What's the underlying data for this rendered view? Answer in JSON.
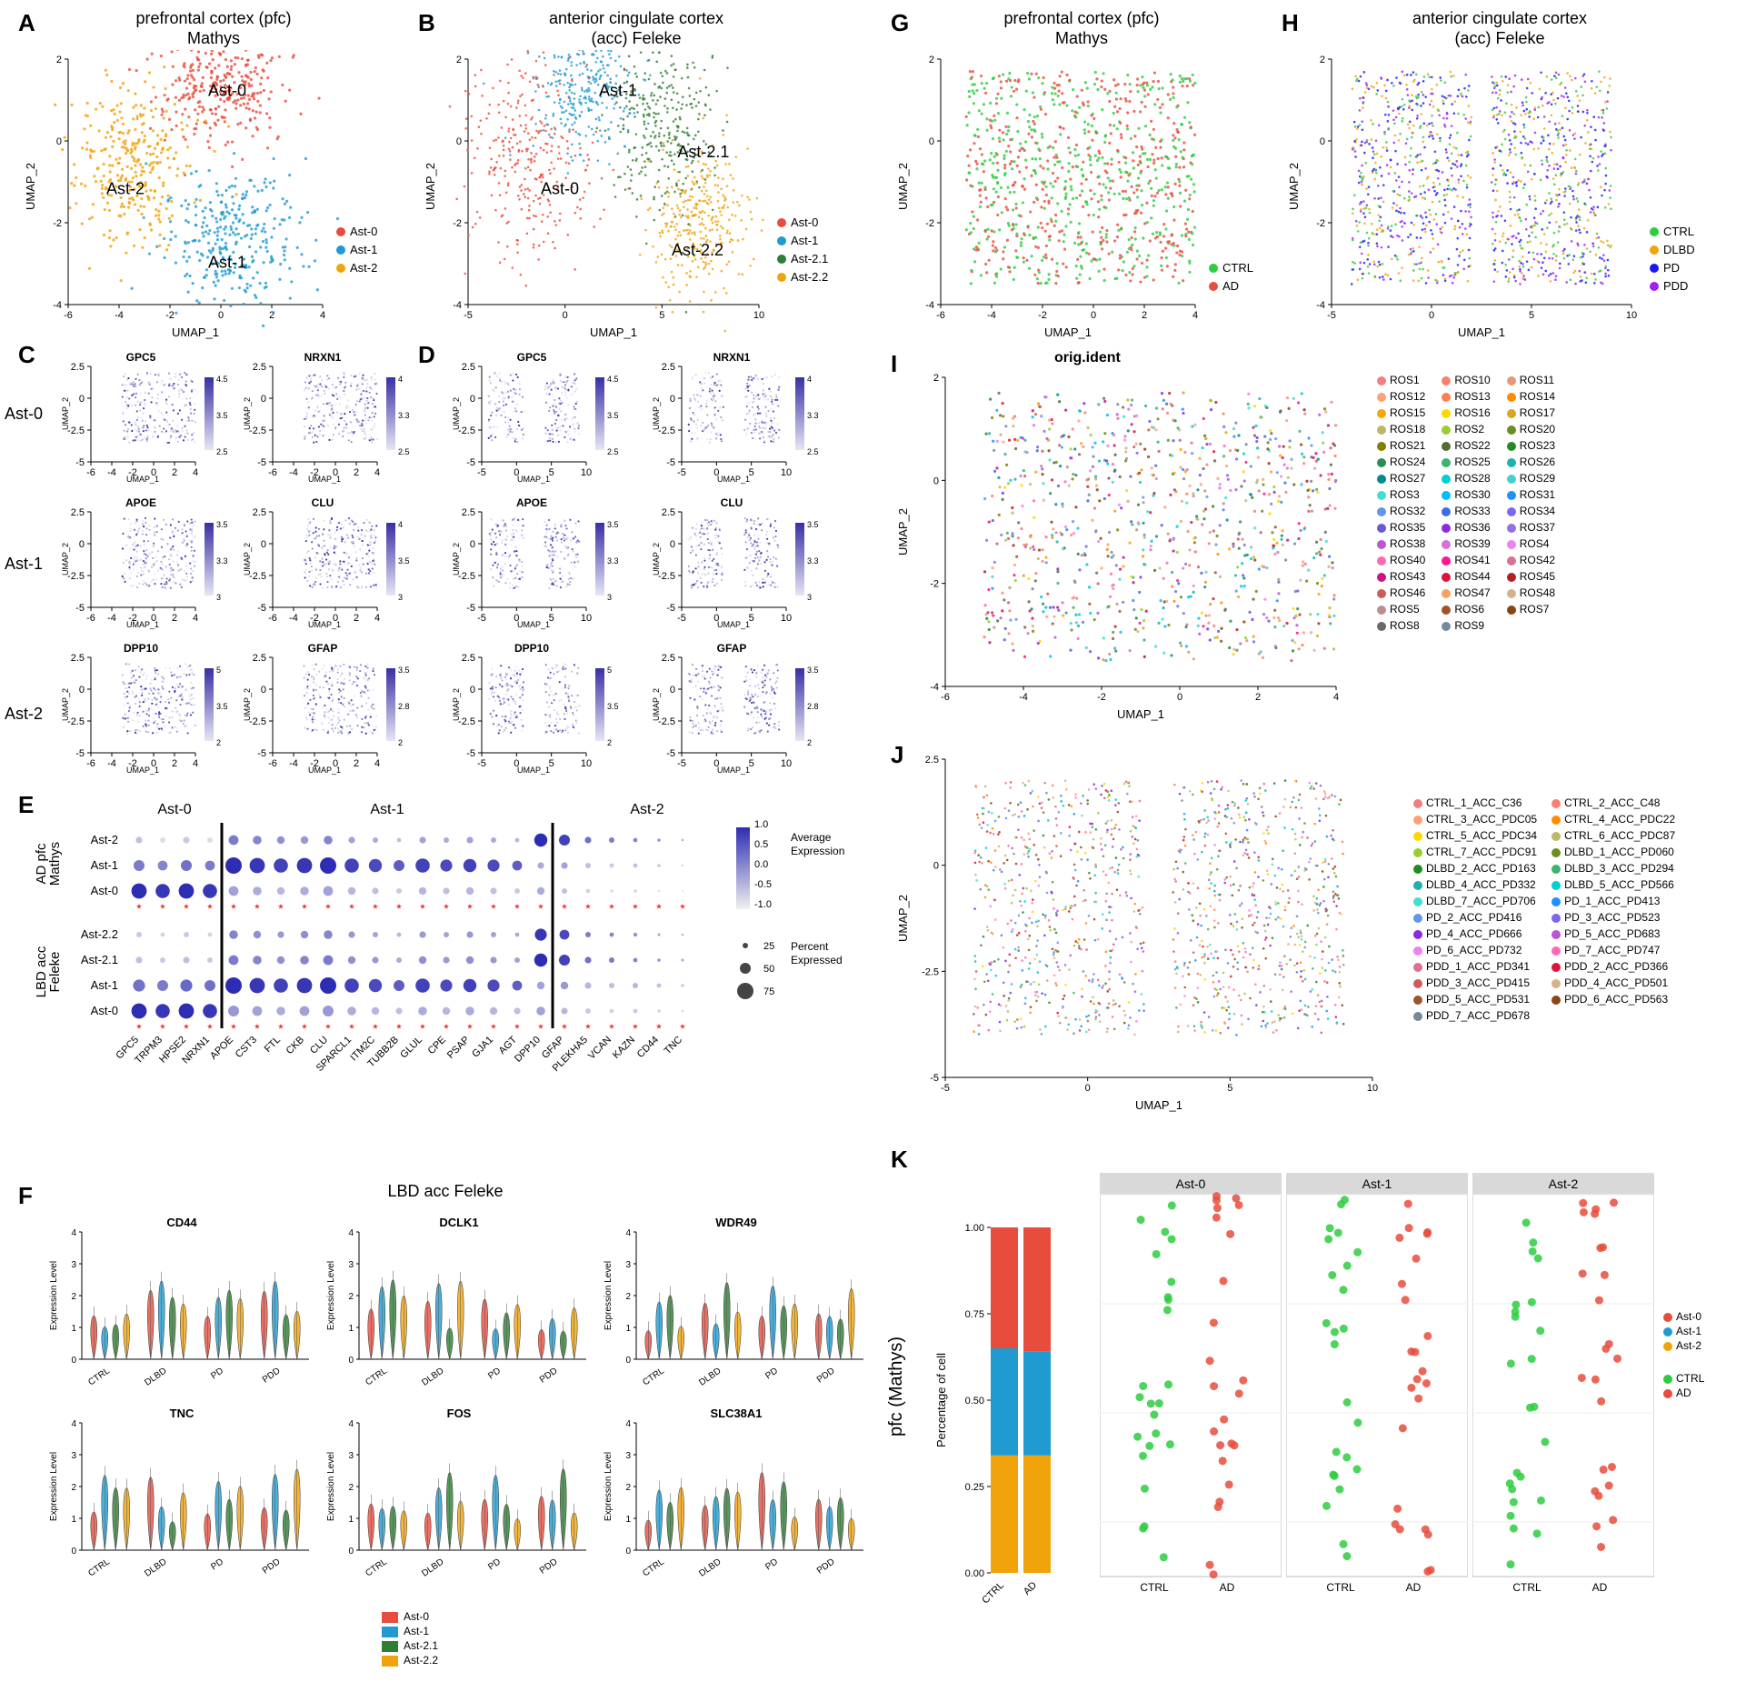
{
  "panelA": {
    "label": "A",
    "title_l1": "prefrontal cortex (pfc)",
    "title_l2": "Mathys",
    "xaxis": "UMAP_1",
    "yaxis": "UMAP_2",
    "xlim": [
      -6,
      4
    ],
    "ylim": [
      -4,
      2
    ],
    "xticks": [
      -6,
      -4,
      -2,
      0,
      2,
      4
    ],
    "yticks": [
      -4,
      -2,
      0,
      2
    ],
    "clusters": [
      {
        "name": "Ast-0",
        "color": "#e74c3c",
        "anno_x": 0.55,
        "anno_y": 0.15
      },
      {
        "name": "Ast-1",
        "color": "#1f9bd1",
        "anno_x": 0.55,
        "anno_y": 0.85
      },
      {
        "name": "Ast-2",
        "color": "#f0a30a",
        "anno_x": 0.15,
        "anno_y": 0.55
      }
    ],
    "n_points": 900
  },
  "panelB": {
    "label": "B",
    "title_l1": "anterior cingulate cortex",
    "title_l2": "(acc) Feleke",
    "xaxis": "UMAP_1",
    "yaxis": "UMAP_2",
    "xlim": [
      -5,
      10
    ],
    "ylim": [
      -4,
      2
    ],
    "xticks": [
      -5,
      0,
      5,
      10
    ],
    "yticks": [
      -4,
      -2,
      0,
      2
    ],
    "clusters": [
      {
        "name": "Ast-0",
        "color": "#e74c3c",
        "anno_x": 0.25,
        "anno_y": 0.55
      },
      {
        "name": "Ast-1",
        "color": "#1f9bd1",
        "anno_x": 0.45,
        "anno_y": 0.15
      },
      {
        "name": "Ast-2.1",
        "color": "#2e7d32",
        "anno_x": 0.72,
        "anno_y": 0.4
      },
      {
        "name": "Ast-2.2",
        "color": "#f0a30a",
        "anno_x": 0.7,
        "anno_y": 0.8
      }
    ],
    "n_points": 1200
  },
  "panelCD": {
    "labelC": "C",
    "labelD": "D",
    "row_headers": [
      "Ast-0",
      "Ast-1",
      "Ast-2"
    ],
    "genes": [
      [
        "GPC5",
        "NRXN1"
      ],
      [
        "APOE",
        "CLU"
      ],
      [
        "DPP10",
        "GFAP"
      ]
    ],
    "scaleC": [
      [
        2.5,
        4.5
      ],
      [
        2.5,
        4.0
      ],
      [
        3.0,
        3.5
      ],
      [
        3.0,
        4.0
      ],
      [
        2,
        5
      ],
      [
        2.0,
        3.5
      ]
    ],
    "scaleD": [
      [
        2.5,
        4.5
      ],
      [
        2.5,
        4.0
      ],
      [
        3.0,
        3.5
      ],
      [
        3.0,
        3.5
      ],
      [
        2,
        5
      ],
      [
        2.0,
        3.5
      ]
    ],
    "color_low": "#e6e6f5",
    "color_high": "#3730a3",
    "axesC": {
      "xlim": [
        -6,
        4
      ],
      "ylim": [
        -5,
        2.5
      ],
      "xticks": [
        -6,
        -4,
        -2,
        0,
        2,
        4
      ],
      "yticks": [
        -5.0,
        -2.5,
        0.0,
        2.5
      ]
    },
    "axesD": {
      "xlim": [
        -5,
        10
      ],
      "ylim": [
        -5,
        2.5
      ],
      "xticks": [
        -5,
        0,
        5,
        10
      ],
      "yticks": [
        -5.0,
        -2.5,
        0.0,
        2.5
      ]
    }
  },
  "panelE": {
    "label": "E",
    "group_headers": [
      "Ast-0",
      "Ast-1",
      "Ast-2"
    ],
    "group_bounds": [
      0,
      4,
      18,
      26
    ],
    "rows_top": [
      "Ast-2",
      "Ast-1",
      "Ast-0"
    ],
    "rows_bot": [
      "Ast-2.2",
      "Ast-2.1",
      "Ast-1",
      "Ast-0"
    ],
    "top_label_l1": "AD pfc",
    "top_label_l2": "Mathys",
    "bot_label_l1": "LBD acc",
    "bot_label_l2": "Feleke",
    "genes": [
      "GPC5",
      "TRPM3",
      "HPSE2",
      "NRXN1",
      "APOE",
      "CST3",
      "FTL",
      "CKB",
      "CLU",
      "SPARCL1",
      "ITM2C",
      "TUBB2B",
      "GLUL",
      "CPE",
      "PSAP",
      "GJA1",
      "AGT",
      "DPP10",
      "GFAP",
      "PLEKHA5",
      "VCAN",
      "KAZN",
      "CD44",
      "TNC"
    ],
    "stars_top": [
      1,
      1,
      1,
      1,
      1,
      1,
      1,
      1,
      1,
      1,
      1,
      1,
      1,
      1,
      1,
      1,
      1,
      1,
      1,
      1,
      1,
      1,
      1,
      1
    ],
    "stars_bot": [
      1,
      1,
      1,
      1,
      1,
      1,
      1,
      1,
      1,
      1,
      1,
      1,
      1,
      1,
      1,
      1,
      1,
      1,
      1,
      1,
      1,
      1,
      1,
      1
    ],
    "top_data": [
      [
        [
          -0.5,
          30
        ],
        [
          -0.8,
          25
        ],
        [
          -0.6,
          30
        ],
        [
          -0.8,
          25
        ],
        [
          0.2,
          45
        ],
        [
          0.1,
          40
        ],
        [
          0.0,
          35
        ],
        [
          -0.1,
          35
        ],
        [
          0.1,
          40
        ],
        [
          -0.2,
          30
        ],
        [
          -0.3,
          25
        ],
        [
          -0.5,
          20
        ],
        [
          -0.2,
          30
        ],
        [
          -0.3,
          25
        ],
        [
          -0.2,
          30
        ],
        [
          -0.3,
          25
        ],
        [
          -0.4,
          20
        ],
        [
          1.0,
          60
        ],
        [
          0.8,
          50
        ],
        [
          0.3,
          30
        ],
        [
          0.2,
          25
        ],
        [
          0.1,
          20
        ],
        [
          -0.1,
          15
        ],
        [
          -0.2,
          10
        ]
      ],
      [
        [
          0.2,
          50
        ],
        [
          0.1,
          45
        ],
        [
          0.3,
          50
        ],
        [
          0.2,
          45
        ],
        [
          1.0,
          75
        ],
        [
          0.9,
          70
        ],
        [
          0.8,
          65
        ],
        [
          0.9,
          70
        ],
        [
          1.0,
          75
        ],
        [
          0.8,
          65
        ],
        [
          0.7,
          60
        ],
        [
          0.5,
          50
        ],
        [
          0.8,
          65
        ],
        [
          0.7,
          55
        ],
        [
          0.8,
          60
        ],
        [
          0.7,
          55
        ],
        [
          0.5,
          45
        ],
        [
          -0.3,
          30
        ],
        [
          -0.2,
          30
        ],
        [
          -0.5,
          25
        ],
        [
          -0.6,
          20
        ],
        [
          -0.5,
          20
        ],
        [
          -0.6,
          15
        ],
        [
          -0.7,
          10
        ]
      ],
      [
        [
          1.0,
          70
        ],
        [
          0.9,
          65
        ],
        [
          1.0,
          70
        ],
        [
          0.9,
          65
        ],
        [
          -0.2,
          45
        ],
        [
          -0.3,
          40
        ],
        [
          -0.4,
          35
        ],
        [
          -0.3,
          40
        ],
        [
          -0.2,
          45
        ],
        [
          -0.4,
          35
        ],
        [
          -0.5,
          30
        ],
        [
          -0.6,
          25
        ],
        [
          -0.4,
          35
        ],
        [
          -0.5,
          30
        ],
        [
          -0.4,
          35
        ],
        [
          -0.5,
          30
        ],
        [
          -0.6,
          25
        ],
        [
          -0.3,
          35
        ],
        [
          -0.5,
          25
        ],
        [
          -0.7,
          20
        ],
        [
          -0.8,
          15
        ],
        [
          -0.7,
          15
        ],
        [
          -0.8,
          10
        ],
        [
          -0.9,
          10
        ]
      ]
    ],
    "bot_data": [
      [
        [
          -0.6,
          25
        ],
        [
          -0.7,
          20
        ],
        [
          -0.6,
          25
        ],
        [
          -0.7,
          20
        ],
        [
          0.1,
          40
        ],
        [
          0.0,
          35
        ],
        [
          -0.1,
          30
        ],
        [
          0.0,
          35
        ],
        [
          0.1,
          40
        ],
        [
          -0.1,
          30
        ],
        [
          -0.2,
          25
        ],
        [
          -0.4,
          20
        ],
        [
          -0.1,
          30
        ],
        [
          -0.2,
          25
        ],
        [
          -0.1,
          30
        ],
        [
          -0.2,
          25
        ],
        [
          -0.3,
          20
        ],
        [
          0.9,
          55
        ],
        [
          0.7,
          45
        ],
        [
          0.2,
          25
        ],
        [
          0.1,
          20
        ],
        [
          0.0,
          18
        ],
        [
          -0.2,
          12
        ],
        [
          -0.3,
          10
        ]
      ],
      [
        [
          -0.5,
          30
        ],
        [
          -0.6,
          25
        ],
        [
          -0.5,
          30
        ],
        [
          -0.6,
          25
        ],
        [
          0.2,
          45
        ],
        [
          0.1,
          40
        ],
        [
          0.0,
          35
        ],
        [
          0.1,
          40
        ],
        [
          0.2,
          45
        ],
        [
          0.0,
          35
        ],
        [
          -0.1,
          30
        ],
        [
          -0.3,
          25
        ],
        [
          0.0,
          35
        ],
        [
          -0.1,
          30
        ],
        [
          0.0,
          35
        ],
        [
          -0.1,
          30
        ],
        [
          -0.2,
          25
        ],
        [
          1.0,
          60
        ],
        [
          0.8,
          50
        ],
        [
          0.3,
          30
        ],
        [
          0.2,
          25
        ],
        [
          0.1,
          20
        ],
        [
          -0.1,
          15
        ],
        [
          -0.2,
          12
        ]
      ],
      [
        [
          0.3,
          55
        ],
        [
          0.2,
          50
        ],
        [
          0.4,
          55
        ],
        [
          0.3,
          50
        ],
        [
          1.0,
          75
        ],
        [
          0.9,
          70
        ],
        [
          0.8,
          65
        ],
        [
          0.9,
          70
        ],
        [
          1.0,
          75
        ],
        [
          0.8,
          65
        ],
        [
          0.7,
          60
        ],
        [
          0.5,
          50
        ],
        [
          0.8,
          65
        ],
        [
          0.7,
          55
        ],
        [
          0.8,
          60
        ],
        [
          0.7,
          55
        ],
        [
          0.5,
          45
        ],
        [
          -0.2,
          35
        ],
        [
          -0.1,
          35
        ],
        [
          -0.4,
          30
        ],
        [
          -0.5,
          25
        ],
        [
          -0.4,
          25
        ],
        [
          -0.5,
          20
        ],
        [
          -0.6,
          15
        ]
      ],
      [
        [
          1.0,
          70
        ],
        [
          0.9,
          65
        ],
        [
          1.0,
          70
        ],
        [
          0.9,
          65
        ],
        [
          -0.1,
          50
        ],
        [
          -0.2,
          45
        ],
        [
          -0.3,
          40
        ],
        [
          -0.2,
          45
        ],
        [
          -0.1,
          50
        ],
        [
          -0.3,
          40
        ],
        [
          -0.4,
          35
        ],
        [
          -0.5,
          30
        ],
        [
          -0.3,
          40
        ],
        [
          -0.4,
          35
        ],
        [
          -0.3,
          40
        ],
        [
          -0.4,
          35
        ],
        [
          -0.5,
          30
        ],
        [
          -0.2,
          40
        ],
        [
          -0.4,
          30
        ],
        [
          -0.6,
          25
        ],
        [
          -0.7,
          20
        ],
        [
          -0.6,
          20
        ],
        [
          -0.7,
          15
        ],
        [
          -0.8,
          12
        ]
      ]
    ],
    "expr_legend": {
      "title": "Average\nExpression",
      "ticks": [
        -1.0,
        -0.5,
        0.0,
        0.5,
        1.0
      ],
      "low": "#f0f0f0",
      "high": "#2d2db3"
    },
    "pct_legend": {
      "title": "Percent\nExpressed",
      "values": [
        25,
        50,
        75
      ]
    }
  },
  "panelF": {
    "label": "F",
    "title": "LBD acc Feleke",
    "groups": [
      "CTRL",
      "DLBD",
      "PD",
      "PDD"
    ],
    "subpops": [
      "Ast-0",
      "Ast-1",
      "Ast-2.1",
      "Ast-2.2"
    ],
    "subpop_colors": {
      "Ast-0": "#e74c3c",
      "Ast-1": "#1f9bd1",
      "Ast-2.1": "#2e7d32",
      "Ast-2.2": "#f0a30a"
    },
    "genes": [
      "CD44",
      "DCLK1",
      "WDR49",
      "TNC",
      "FOS",
      "SLC38A1"
    ],
    "yaxis": "Expression Level",
    "ylim": [
      0,
      4
    ],
    "yticks": [
      0,
      1,
      2,
      3,
      4
    ]
  },
  "panelG": {
    "label": "G",
    "title_l1": "prefrontal cortex (pfc)",
    "title_l2": "Mathys",
    "xaxis": "UMAP_1",
    "yaxis": "UMAP_2",
    "xlim": [
      -6,
      4
    ],
    "ylim": [
      -4,
      2
    ],
    "xticks": [
      -6,
      -4,
      -2,
      0,
      2,
      4
    ],
    "yticks": [
      -4,
      -2,
      0,
      2
    ],
    "conditions": [
      {
        "name": "CTRL",
        "color": "#2ecc40"
      },
      {
        "name": "AD",
        "color": "#e74c3c"
      }
    ],
    "n_points": 900
  },
  "panelH": {
    "label": "H",
    "title_l1": "anterior cingulate cortex",
    "title_l2": "(acc) Feleke",
    "xaxis": "UMAP_1",
    "yaxis": "UMAP_2",
    "xlim": [
      -5,
      10
    ],
    "ylim": [
      -4,
      2
    ],
    "xticks": [
      -5,
      0,
      5,
      10
    ],
    "yticks": [
      -4,
      -2,
      0,
      2
    ],
    "conditions": [
      {
        "name": "CTRL",
        "color": "#2ecc40"
      },
      {
        "name": "DLBD",
        "color": "#f0a30a"
      },
      {
        "name": "PD",
        "color": "#1a1af0"
      },
      {
        "name": "PDD",
        "color": "#a020f0"
      }
    ],
    "n_points": 1200
  },
  "panelI": {
    "label": "I",
    "title": "orig.ident",
    "xaxis": "UMAP_1",
    "yaxis": "UMAP_2",
    "xlim": [
      -6,
      4
    ],
    "ylim": [
      -4,
      2
    ],
    "xticks": [
      -6,
      -4,
      -2,
      0,
      2,
      4
    ],
    "yticks": [
      -4,
      -2,
      0,
      2
    ],
    "samples": [
      "ROS1",
      "ROS10",
      "ROS11",
      "ROS12",
      "ROS13",
      "ROS14",
      "ROS15",
      "ROS16",
      "ROS17",
      "ROS18",
      "ROS2",
      "ROS20",
      "ROS21",
      "ROS22",
      "ROS23",
      "ROS24",
      "ROS25",
      "ROS26",
      "ROS27",
      "ROS28",
      "ROS29",
      "ROS3",
      "ROS30",
      "ROS31",
      "ROS32",
      "ROS33",
      "ROS34",
      "ROS35",
      "ROS36",
      "ROS37",
      "ROS38",
      "ROS39",
      "ROS4",
      "ROS40",
      "ROS41",
      "ROS42",
      "ROS43",
      "ROS44",
      "ROS45",
      "ROS46",
      "ROS47",
      "ROS48",
      "ROS5",
      "ROS6",
      "ROS7",
      "ROS8",
      "ROS9"
    ],
    "palette": [
      "#f08080",
      "#fa8072",
      "#e9967a",
      "#ffa07a",
      "#ff7f50",
      "#ff8c00",
      "#ffa500",
      "#ffd700",
      "#daa520",
      "#bdb76b",
      "#9acd32",
      "#6b8e23",
      "#808000",
      "#556b2f",
      "#228b22",
      "#2e8b57",
      "#3cb371",
      "#20b2aa",
      "#008b8b",
      "#00ced1",
      "#48d1cc",
      "#40e0d0",
      "#00bfff",
      "#1e90ff",
      "#6495ed",
      "#4169e1",
      "#7b68ee",
      "#6a5acd",
      "#8a2be2",
      "#9370db",
      "#ba55d3",
      "#da70d6",
      "#ee82ee",
      "#ff69b4",
      "#ff1493",
      "#db7093",
      "#c71585",
      "#dc143c",
      "#b22222",
      "#cd5c5c",
      "#f4a460",
      "#d2b48c",
      "#bc8f8f",
      "#a0522d",
      "#8b4513",
      "#696969",
      "#778899"
    ],
    "n_points": 900
  },
  "panelJ": {
    "label": "J",
    "xaxis": "UMAP_1",
    "yaxis": "UMAP_2",
    "xlim": [
      -5,
      10
    ],
    "ylim": [
      -5,
      2.5
    ],
    "xticks": [
      -5,
      0,
      5,
      10
    ],
    "yticks": [
      -5.0,
      -2.5,
      0.0,
      2.5
    ],
    "samples": [
      "CTRL_1_ACC_C36",
      "CTRL_2_ACC_C48",
      "CTRL_3_ACC_PDC05",
      "CTRL_4_ACC_PDC22",
      "CTRL_5_ACC_PDC34",
      "CTRL_6_ACC_PDC87",
      "CTRL_7_ACC_PDC91",
      "DLBD_1_ACC_PD060",
      "DLBD_2_ACC_PD163",
      "DLBD_3_ACC_PD294",
      "DLBD_4_ACC_PD332",
      "DLBD_5_ACC_PD566",
      "DLBD_7_ACC_PD706",
      "PD_1_ACC_PD413",
      "PD_2_ACC_PD416",
      "PD_3_ACC_PD523",
      "PD_4_ACC_PD666",
      "PD_5_ACC_PD683",
      "PD_6_ACC_PD732",
      "PD_7_ACC_PD747",
      "PDD_1_ACC_PD341",
      "PDD_2_ACC_PD366",
      "PDD_3_ACC_PD415",
      "PDD_4_ACC_PD501",
      "PDD_5_ACC_PD531",
      "PDD_6_ACC_PD563",
      "PDD_7_ACC_PD678"
    ],
    "palette": [
      "#f08080",
      "#fa8072",
      "#ffa07a",
      "#ff8c00",
      "#ffd700",
      "#bdb76b",
      "#9acd32",
      "#6b8e23",
      "#228b22",
      "#3cb371",
      "#20b2aa",
      "#00ced1",
      "#40e0d0",
      "#1e90ff",
      "#6495ed",
      "#7b68ee",
      "#8a2be2",
      "#ba55d3",
      "#ee82ee",
      "#ff69b4",
      "#db7093",
      "#dc143c",
      "#cd5c5c",
      "#d2b48c",
      "#a0522d",
      "#8b4513",
      "#778899"
    ],
    "n_points": 1200
  },
  "panelK": {
    "label": "K",
    "ylabel": "pfc (Mathys)",
    "bar": {
      "ylabel": "Percentage of cell",
      "groups": [
        "CTRL",
        "AD"
      ],
      "series": [
        {
          "name": "Ast-0",
          "color": "#e74c3c",
          "vals": [
            0.35,
            0.36
          ]
        },
        {
          "name": "Ast-1",
          "color": "#1f9bd1",
          "vals": [
            0.31,
            0.3
          ]
        },
        {
          "name": "Ast-2",
          "color": "#f0a30a",
          "vals": [
            0.34,
            0.34
          ]
        }
      ],
      "yticks": [
        0.0,
        0.25,
        0.5,
        0.75,
        1.0
      ]
    },
    "dots": {
      "facets": [
        "Ast-0",
        "Ast-1",
        "Ast-2"
      ],
      "conditions": [
        {
          "name": "CTRL",
          "color": "#2ecc40"
        },
        {
          "name": "AD",
          "color": "#e74c3c"
        }
      ],
      "ylim": [
        10,
        80
      ],
      "yticks": [
        20,
        40,
        60,
        80
      ],
      "n_per": 24
    }
  }
}
